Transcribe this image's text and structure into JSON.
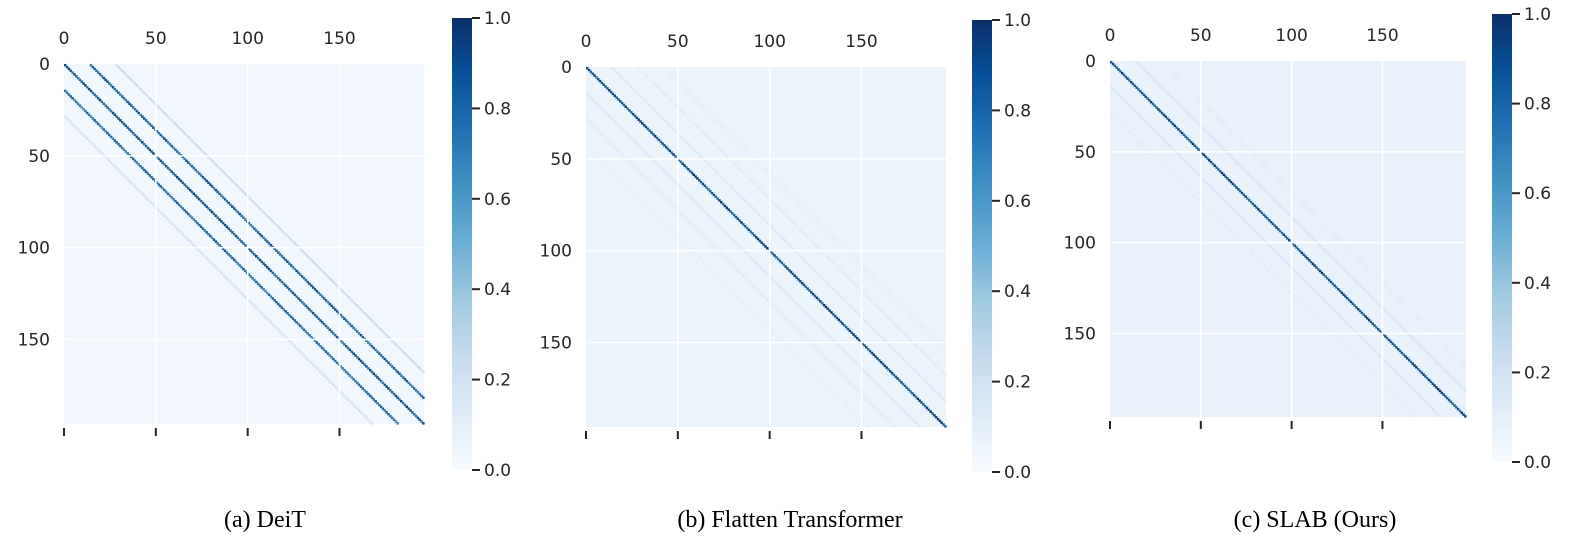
{
  "chart_data": [
    {
      "type": "heatmap",
      "caption": "(a) DeiT",
      "size": 196,
      "xticks": [
        0,
        50,
        100,
        150
      ],
      "yticks": [
        0,
        50,
        100,
        150
      ],
      "xtick_labels": [
        "0",
        "50",
        "100",
        "150"
      ],
      "ytick_labels": [
        "0",
        "50",
        "100",
        "150"
      ],
      "colorbar": {
        "min": 0.0,
        "max": 1.0,
        "ticks": [
          0.0,
          0.2,
          0.4,
          0.6,
          0.8,
          1.0
        ],
        "tick_labels": [
          "0.0",
          "0.2",
          "0.4",
          "0.6",
          "0.8",
          "1.0"
        ]
      },
      "colormap": "Blues",
      "pattern": {
        "main_diagonal": 0.95,
        "off_diagonals": [
          {
            "offset": 14,
            "value": 0.9
          },
          {
            "offset": -14,
            "value": 0.85
          },
          {
            "offset": 28,
            "value": 0.25
          },
          {
            "offset": -28,
            "value": 0.2
          }
        ],
        "background": 0.03
      }
    },
    {
      "type": "heatmap",
      "caption": "(b) Flatten Transformer",
      "size": 196,
      "xticks": [
        0,
        50,
        100,
        150
      ],
      "yticks": [
        0,
        50,
        100,
        150
      ],
      "xtick_labels": [
        "0",
        "50",
        "100",
        "150"
      ],
      "ytick_labels": [
        "0",
        "50",
        "100",
        "150"
      ],
      "colorbar": {
        "min": 0.0,
        "max": 1.0,
        "ticks": [
          0.0,
          0.2,
          0.4,
          0.6,
          0.8,
          1.0
        ],
        "tick_labels": [
          "0.0",
          "0.2",
          "0.4",
          "0.6",
          "0.8",
          "1.0"
        ]
      },
      "colormap": "Blues",
      "pattern": {
        "main_diagonal": 1.0,
        "off_diagonals": [
          {
            "offset": 14,
            "value": 0.15
          },
          {
            "offset": -14,
            "value": 0.15
          },
          {
            "offset": 28,
            "value": 0.12
          },
          {
            "offset": -28,
            "value": 0.12
          },
          {
            "offset": 42,
            "value": 0.1
          },
          {
            "offset": -42,
            "value": 0.1
          }
        ],
        "background": 0.06
      }
    },
    {
      "type": "heatmap",
      "caption": "(c) SLAB (Ours)",
      "size": 196,
      "xticks": [
        0,
        50,
        100,
        150
      ],
      "yticks": [
        0,
        50,
        100,
        150
      ],
      "xtick_labels": [
        "0",
        "50",
        "100",
        "150"
      ],
      "ytick_labels": [
        "0",
        "50",
        "100",
        "150"
      ],
      "colorbar": {
        "min": 0.0,
        "max": 1.0,
        "ticks": [
          0.0,
          0.2,
          0.4,
          0.6,
          0.8,
          1.0
        ],
        "tick_labels": [
          "0.0",
          "0.2",
          "0.4",
          "0.6",
          "0.8",
          "1.0"
        ]
      },
      "colormap": "Blues",
      "pattern": {
        "main_diagonal": 1.0,
        "off_diagonals": [
          {
            "offset": 14,
            "value": 0.18
          },
          {
            "offset": -14,
            "value": 0.18
          },
          {
            "offset": 28,
            "value": 0.12
          },
          {
            "offset": -28,
            "value": 0.12
          }
        ],
        "background": 0.07
      }
    }
  ]
}
